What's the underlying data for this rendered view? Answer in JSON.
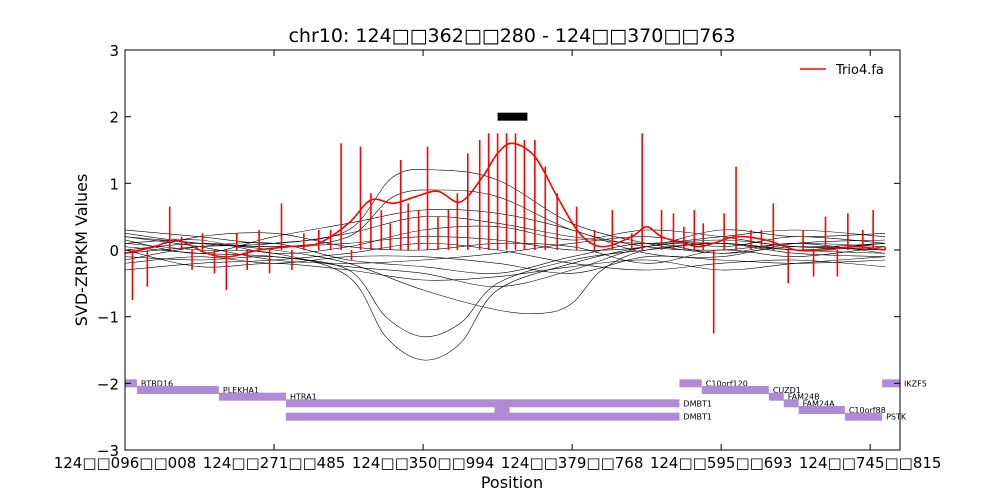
{
  "chart_data": {
    "type": "line",
    "title": "chr10: 124□□362□□280 - 124□□370□□763",
    "xlabel": "Position",
    "ylabel": "SVD-ZRPKM Values",
    "ylim": [
      -3,
      3
    ],
    "y_ticks": [
      -3,
      -2,
      -1,
      0,
      1,
      2,
      3
    ],
    "y_tick_labels": [
      "−3",
      "−2",
      "−1",
      "0",
      "1",
      "2",
      "3"
    ],
    "x_tick_labels": [
      "124□□096□□008",
      "124□□271□□485",
      "124□□350□□994",
      "124□□379□□768",
      "124□□595□□693",
      "124□□745□□815"
    ],
    "x_tick_positions": [
      0,
      1,
      2,
      3,
      4,
      5
    ],
    "xlim": [
      0,
      5.2
    ],
    "legend": {
      "entries": [
        "Trio4.fa"
      ],
      "position": "top-right"
    },
    "highlight_region": {
      "x": [
        2.5,
        2.7
      ],
      "y": 2.0
    },
    "series": [
      {
        "name": "Trio4.fa",
        "color": "#ff0000",
        "smooth_x": [
          0.0,
          0.2,
          0.35,
          0.55,
          0.7,
          0.9,
          1.1,
          1.3,
          1.5,
          1.65,
          1.8,
          1.95,
          2.1,
          2.25,
          2.4,
          2.5,
          2.6,
          2.75,
          2.9,
          3.05,
          3.2,
          3.4,
          3.5,
          3.6,
          3.75,
          3.85,
          3.95,
          4.1,
          4.3,
          4.5,
          4.7,
          4.9,
          5.1
        ],
        "smooth_y": [
          -0.05,
          0.05,
          0.15,
          -0.05,
          -0.1,
          0.0,
          0.05,
          0.1,
          0.4,
          0.75,
          0.7,
          0.8,
          0.88,
          0.72,
          1.1,
          1.45,
          1.6,
          1.4,
          0.8,
          0.25,
          0.05,
          0.2,
          0.35,
          0.2,
          0.1,
          0.05,
          0.1,
          0.2,
          0.15,
          0.0,
          0.0,
          0.05,
          0.0
        ],
        "bar_x": [
          0.05,
          0.15,
          0.3,
          0.38,
          0.45,
          0.52,
          0.6,
          0.68,
          0.75,
          0.82,
          0.9,
          0.97,
          1.05,
          1.12,
          1.2,
          1.3,
          1.38,
          1.45,
          1.52,
          1.58,
          1.65,
          1.72,
          1.78,
          1.85,
          1.9,
          1.97,
          2.03,
          2.1,
          2.17,
          2.23,
          2.3,
          2.38,
          2.44,
          2.5,
          2.56,
          2.62,
          2.68,
          2.75,
          2.82,
          2.9,
          3.03,
          3.15,
          3.27,
          3.4,
          3.47,
          3.6,
          3.68,
          3.75,
          3.82,
          3.88,
          3.95,
          4.02,
          4.1,
          4.2,
          4.27,
          4.35,
          4.45,
          4.55,
          4.62,
          4.7,
          4.78,
          4.85,
          4.95,
          5.02,
          5.1
        ],
        "bar_y": [
          -0.75,
          -0.55,
          0.65,
          0.2,
          -0.3,
          0.25,
          -0.35,
          -0.6,
          0.25,
          -0.3,
          0.3,
          -0.35,
          0.7,
          -0.3,
          0.25,
          0.3,
          0.3,
          1.6,
          -0.15,
          1.55,
          0.85,
          0.6,
          0.4,
          1.35,
          0.7,
          0.6,
          1.55,
          0.5,
          0.6,
          0.85,
          1.45,
          1.65,
          1.75,
          1.75,
          1.75,
          1.75,
          1.65,
          1.65,
          1.25,
          0.85,
          0.65,
          0.3,
          0.6,
          0.25,
          1.75,
          0.6,
          0.55,
          0.35,
          0.6,
          0.4,
          -1.25,
          0.55,
          1.25,
          0.3,
          0.3,
          0.7,
          -0.5,
          0.3,
          -0.4,
          0.5,
          -0.4,
          0.55,
          0.3,
          0.6,
          0.05
        ]
      }
    ],
    "background_series": [
      {
        "x": [
          0.0,
          0.5,
          1.0,
          1.5,
          1.75,
          2.0,
          2.25,
          2.5,
          3.0,
          3.5,
          4.0,
          4.5,
          5.1
        ],
        "y": [
          0.1,
          0.0,
          -0.05,
          -0.4,
          -1.3,
          -1.65,
          -1.4,
          -0.6,
          -0.2,
          0.05,
          0.15,
          0.05,
          0.0
        ]
      },
      {
        "x": [
          0.0,
          0.5,
          1.0,
          1.5,
          1.75,
          2.0,
          2.25,
          2.5,
          3.0,
          3.5,
          4.0,
          4.5,
          5.1
        ],
        "y": [
          0.05,
          -0.05,
          -0.1,
          -0.3,
          -1.0,
          -1.3,
          -1.1,
          -0.5,
          -0.15,
          0.0,
          0.1,
          0.0,
          -0.05
        ]
      },
      {
        "x": [
          0.0,
          0.5,
          1.0,
          1.5,
          2.0,
          2.5,
          2.8,
          3.0,
          3.2,
          3.5,
          4.0,
          4.5,
          5.1
        ],
        "y": [
          0.2,
          0.1,
          0.0,
          -0.2,
          -0.6,
          -0.9,
          -0.95,
          -0.8,
          -0.3,
          0.0,
          0.1,
          0.0,
          0.1
        ]
      },
      {
        "x": [
          0.0,
          0.5,
          1.0,
          1.5,
          2.0,
          2.5,
          3.0,
          3.5,
          4.0,
          4.5,
          5.1
        ],
        "y": [
          -0.1,
          -0.15,
          -0.1,
          -0.25,
          -0.35,
          -0.55,
          -0.3,
          0.05,
          0.1,
          -0.05,
          -0.1
        ]
      },
      {
        "x": [
          0.0,
          0.5,
          1.0,
          1.5,
          1.8,
          2.1,
          2.5,
          3.0,
          3.5,
          4.0,
          4.5,
          5.1
        ],
        "y": [
          -0.05,
          0.05,
          0.1,
          0.3,
          1.1,
          1.2,
          1.05,
          0.4,
          0.1,
          -0.05,
          0.05,
          0.0
        ]
      },
      {
        "x": [
          0.0,
          0.5,
          1.0,
          1.5,
          1.8,
          2.1,
          2.5,
          3.0,
          3.5,
          4.0,
          4.5,
          5.1
        ],
        "y": [
          0.0,
          0.1,
          0.05,
          0.2,
          0.8,
          0.9,
          0.8,
          0.3,
          0.05,
          0.0,
          0.1,
          0.05
        ]
      },
      {
        "x": [
          0.0,
          0.5,
          1.0,
          1.5,
          2.0,
          2.5,
          3.0,
          3.5,
          4.0,
          4.5,
          5.1
        ],
        "y": [
          0.3,
          0.2,
          0.1,
          0.25,
          0.5,
          0.4,
          0.2,
          0.1,
          0.2,
          0.3,
          0.2
        ]
      },
      {
        "x": [
          0.0,
          0.5,
          1.0,
          1.5,
          2.0,
          2.5,
          3.0,
          3.5,
          4.0,
          4.5,
          5.1
        ],
        "y": [
          -0.2,
          -0.1,
          -0.2,
          -0.1,
          -0.1,
          -0.2,
          -0.35,
          -0.1,
          -0.15,
          -0.2,
          -0.15
        ]
      },
      {
        "x": [
          0.0,
          0.5,
          1.0,
          1.5,
          2.0,
          2.5,
          3.0,
          3.5,
          4.0,
          4.5,
          5.1
        ],
        "y": [
          0.15,
          -0.05,
          0.2,
          0.4,
          0.6,
          0.55,
          0.3,
          -0.05,
          -0.1,
          0.1,
          0.15
        ]
      },
      {
        "x": [
          0.0,
          0.5,
          1.0,
          1.5,
          2.0,
          2.5,
          3.0,
          3.5,
          4.0,
          4.5,
          5.1
        ],
        "y": [
          -0.3,
          -0.2,
          -0.15,
          -0.05,
          0.1,
          0.0,
          -0.2,
          -0.3,
          -0.2,
          -0.15,
          -0.25
        ]
      },
      {
        "x": [
          0.0,
          0.5,
          1.0,
          1.5,
          2.0,
          2.5,
          3.0,
          3.5,
          4.0,
          4.5,
          5.1
        ],
        "y": [
          0.1,
          0.15,
          -0.05,
          0.05,
          0.3,
          0.35,
          0.15,
          0.3,
          0.2,
          0.05,
          0.1
        ]
      },
      {
        "x": [
          0.0,
          0.5,
          1.0,
          1.5,
          2.0,
          2.5,
          3.0,
          3.5,
          4.0,
          4.5,
          5.1
        ],
        "y": [
          -0.15,
          0.05,
          0.1,
          -0.15,
          -0.25,
          -0.35,
          -0.1,
          0.1,
          -0.05,
          0.1,
          -0.05
        ]
      },
      {
        "x": [
          0.0,
          0.5,
          1.0,
          1.5,
          2.0,
          2.5,
          3.0,
          3.5,
          4.0,
          4.5,
          5.1
        ],
        "y": [
          0.25,
          0.1,
          0.05,
          0.1,
          0.2,
          0.15,
          0.0,
          0.05,
          0.3,
          0.2,
          0.25
        ]
      },
      {
        "x": [
          0.0,
          0.5,
          1.0,
          1.5,
          2.0,
          2.5,
          3.0,
          3.5,
          4.0,
          4.5,
          5.1
        ],
        "y": [
          0.0,
          -0.25,
          -0.2,
          -0.3,
          -0.45,
          -0.4,
          -0.25,
          -0.15,
          -0.3,
          -0.2,
          -0.1
        ]
      },
      {
        "x": [
          0.0,
          0.5,
          1.0,
          1.5,
          2.0,
          2.5,
          3.0,
          3.5,
          4.0,
          4.5,
          5.1
        ],
        "y": [
          -0.05,
          0.2,
          0.25,
          0.05,
          0.0,
          0.1,
          0.05,
          -0.2,
          0.0,
          -0.1,
          0.05
        ]
      },
      {
        "x": [
          0.0,
          0.5,
          1.0,
          1.5,
          2.0,
          2.5,
          3.0,
          3.5,
          4.0,
          4.5,
          5.1
        ],
        "y": [
          0.2,
          0.05,
          -0.15,
          -0.2,
          -0.15,
          -0.05,
          0.1,
          0.2,
          0.05,
          0.2,
          0.1
        ]
      }
    ],
    "genes": [
      {
        "label": "BTBD16",
        "start": 0.0,
        "end": 0.08,
        "row": 0
      },
      {
        "label": "PLEKHA1",
        "start": 0.08,
        "end": 0.63,
        "row": 1
      },
      {
        "label": "HTRA1",
        "start": 0.63,
        "end": 1.08,
        "row": 2
      },
      {
        "label": "DMBT1",
        "start": 1.08,
        "end": 3.72,
        "row": 3
      },
      {
        "label": "DMBT1",
        "start": 1.08,
        "end": 3.72,
        "row": 5
      },
      {
        "label": "C10orf120",
        "start": 3.72,
        "end": 3.87,
        "row": 0
      },
      {
        "label": "CUZD1",
        "start": 3.87,
        "end": 4.32,
        "row": 1
      },
      {
        "label": "FAM24B",
        "start": 4.32,
        "end": 4.42,
        "row": 2
      },
      {
        "label": "FAM24A",
        "start": 4.42,
        "end": 4.52,
        "row": 3
      },
      {
        "label": "C10orf88",
        "start": 4.52,
        "end": 4.83,
        "row": 4
      },
      {
        "label": "PSTK",
        "start": 4.83,
        "end": 5.08,
        "row": 5
      },
      {
        "label": "IKZF5",
        "start": 5.08,
        "end": 5.2,
        "row": 0
      }
    ],
    "gene_color": "#b08ad6"
  }
}
